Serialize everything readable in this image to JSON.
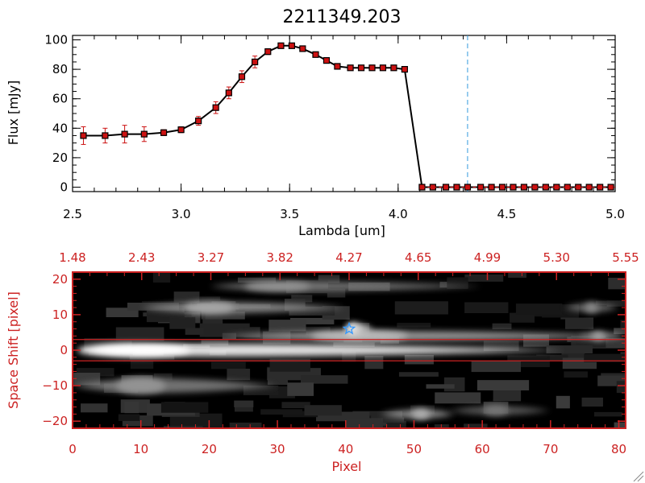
{
  "chart_data": [
    {
      "type": "line",
      "title": "2211349.203",
      "xlabel": "Lambda [um]",
      "ylabel": "Flux [mJy]",
      "xlim": [
        2.5,
        5.0
      ],
      "ylim": [
        -3,
        103
      ],
      "xticks": [
        "2.5",
        "3.0",
        "3.5",
        "4.0",
        "4.5",
        "5.0"
      ],
      "yticks": [
        "0",
        "20",
        "40",
        "60",
        "80",
        "100"
      ],
      "reference_line_x": 4.32,
      "colors": {
        "line": "#000000",
        "marker": "#cc1111",
        "error": "#cc1111",
        "reference": "#3399dd"
      },
      "series": [
        {
          "x": [
            2.55,
            2.65,
            2.74,
            2.83,
            2.92,
            3.0,
            3.08,
            3.16,
            3.22,
            3.28,
            3.34,
            3.4,
            3.46,
            3.51,
            3.56,
            3.62,
            3.67,
            3.72,
            3.78,
            3.83,
            3.88,
            3.93,
            3.98,
            4.03,
            4.11,
            4.16,
            4.22,
            4.27,
            4.32,
            4.38,
            4.43,
            4.48,
            4.53,
            4.58,
            4.63,
            4.68,
            4.73,
            4.78,
            4.83,
            4.88,
            4.93,
            4.98
          ],
          "y": [
            35,
            35,
            36,
            36,
            37,
            39,
            45,
            54,
            64,
            75,
            85,
            92,
            96,
            96,
            94,
            90,
            86,
            82,
            81,
            81,
            81,
            81,
            81,
            80,
            0,
            0,
            0,
            0,
            0,
            0,
            0,
            0,
            0,
            0,
            0,
            0,
            0,
            0,
            0,
            0,
            0,
            0
          ],
          "error": [
            6,
            5,
            6,
            5,
            2,
            2,
            3,
            4,
            4,
            4,
            4,
            2,
            1,
            1,
            1,
            1,
            1,
            1,
            1,
            1,
            1,
            1,
            1,
            1,
            0,
            0,
            0,
            0,
            0,
            0,
            0,
            0,
            0,
            0,
            0,
            0,
            0,
            0,
            0,
            0,
            0,
            0
          ]
        }
      ]
    },
    {
      "type": "heatmap",
      "xlabel": "Pixel",
      "ylabel": "Space Shift [pixel]",
      "xlim": [
        0,
        81
      ],
      "ylim": [
        -22,
        22
      ],
      "xticks": [
        "0",
        "10",
        "20",
        "30",
        "40",
        "50",
        "60",
        "70",
        "80"
      ],
      "yticks": [
        "-20",
        "-10",
        "0",
        "10",
        "20"
      ],
      "top_axis_ticks": [
        "1.48",
        "2.43",
        "3.27",
        "3.82",
        "4.27",
        "4.65",
        "4.99",
        "5.30",
        "5.55"
      ],
      "aperture_lines_y": [
        3,
        -3
      ],
      "marker": {
        "x": 40.5,
        "y": 6,
        "symbol": "star"
      },
      "colors": {
        "axis": "#cc2222",
        "aperture": "#cc2222",
        "marker": "#3399ff",
        "background": "#000000"
      },
      "sources": [
        {
          "x0": 3,
          "x1": 72,
          "y": 0,
          "peak_x": 9,
          "length": 45,
          "width": 3.5,
          "intensity": 1.0
        },
        {
          "x0": 22,
          "x1": 81,
          "y": 4,
          "peak_x": 42,
          "length": 55,
          "width": 2.8,
          "intensity": 0.55
        },
        {
          "x0": 40,
          "x1": 44,
          "y": 6,
          "peak_x": 41,
          "length": 4,
          "width": 3,
          "intensity": 0.75
        },
        {
          "x0": 10,
          "x1": 40,
          "y": 12,
          "peak_x": 20,
          "length": 20,
          "width": 3,
          "intensity": 0.45
        },
        {
          "x0": 20,
          "x1": 60,
          "y": 18,
          "peak_x": 30,
          "length": 25,
          "width": 2.5,
          "intensity": 0.35
        },
        {
          "x0": 72,
          "x1": 80,
          "y": 12,
          "peak_x": 76,
          "length": 5,
          "width": 2.5,
          "intensity": 0.3
        },
        {
          "x0": 74,
          "x1": 81,
          "y": 4,
          "peak_x": 77,
          "length": 5,
          "width": 2,
          "intensity": 0.45
        },
        {
          "x0": 0,
          "x1": 30,
          "y": -10,
          "peak_x": 10,
          "length": 25,
          "width": 4,
          "intensity": 0.35
        },
        {
          "x0": 45,
          "x1": 56,
          "y": -18,
          "peak_x": 51,
          "length": 6,
          "width": 2.5,
          "intensity": 0.5
        },
        {
          "x0": 55,
          "x1": 70,
          "y": -17,
          "peak_x": 62,
          "length": 10,
          "width": 2.5,
          "intensity": 0.2
        }
      ]
    }
  ]
}
